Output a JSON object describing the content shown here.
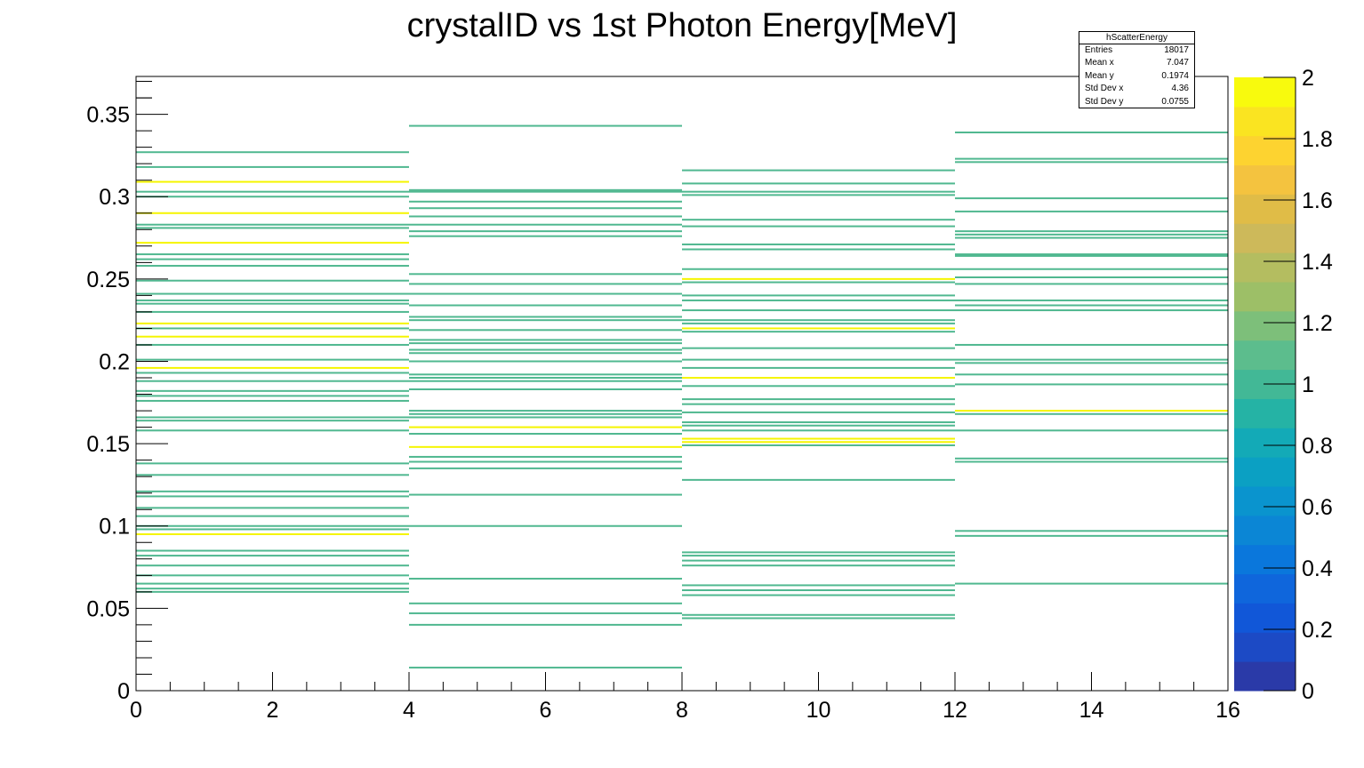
{
  "chart_data": {
    "type": "heatmap",
    "title": "crystalID vs 1st Photon Energy[MeV]",
    "xlabel": "",
    "ylabel": "",
    "xlim": [
      0,
      16
    ],
    "ylim": [
      0,
      0.373
    ],
    "x_ticks": [
      0,
      2,
      4,
      6,
      8,
      10,
      12,
      14,
      16
    ],
    "x_tick_labels": [
      "0",
      "2",
      "4",
      "6",
      "8",
      "10",
      "12",
      "14",
      "16"
    ],
    "y_ticks": [
      0,
      0.05,
      0.1,
      0.15,
      0.2,
      0.25,
      0.3,
      0.35
    ],
    "y_tick_labels": [
      "0",
      "0.05",
      "0.1",
      "0.15",
      "0.2",
      "0.25",
      "0.3",
      "0.35"
    ],
    "colorbar": {
      "min": 0,
      "max": 2,
      "ticks": [
        0,
        0.2,
        0.4,
        0.6,
        0.8,
        1,
        1.2,
        1.4,
        1.6,
        1.8,
        2
      ],
      "tick_labels": [
        "0",
        "0.2",
        "0.4",
        "0.6",
        "0.8",
        "1",
        "1.2",
        "1.4",
        "1.6",
        "1.8",
        "2"
      ],
      "colors": [
        "#2a3aa8",
        "#1c4ac5",
        "#1157d8",
        "#0f66dc",
        "#0a77dc",
        "#0b86d5",
        "#0a94ce",
        "#0ba0c3",
        "#13aab7",
        "#25b3a5",
        "#42b896",
        "#5cbd8d",
        "#7dbf7a",
        "#9dbf67",
        "#b4bd60",
        "#cdb95a",
        "#e0bc47",
        "#f4c33f",
        "#fdd330",
        "#fae421",
        "#f8fa0d"
      ]
    },
    "cell_colors": {
      "1": "#50b890",
      "2": "#f5f500"
    },
    "bins": [
      {
        "x0": 0,
        "x1": 4,
        "cells": [
          [
            0.327,
            1
          ],
          [
            0.318,
            1
          ],
          [
            0.309,
            2
          ],
          [
            0.303,
            1
          ],
          [
            0.3,
            1
          ],
          [
            0.29,
            2
          ],
          [
            0.283,
            1
          ],
          [
            0.281,
            1
          ],
          [
            0.272,
            2
          ],
          [
            0.265,
            1
          ],
          [
            0.262,
            1
          ],
          [
            0.258,
            1
          ],
          [
            0.249,
            1
          ],
          [
            0.241,
            1
          ],
          [
            0.237,
            1
          ],
          [
            0.235,
            1
          ],
          [
            0.23,
            1
          ],
          [
            0.223,
            2
          ],
          [
            0.22,
            1
          ],
          [
            0.215,
            2
          ],
          [
            0.21,
            1
          ],
          [
            0.201,
            1
          ],
          [
            0.196,
            2
          ],
          [
            0.193,
            1
          ],
          [
            0.188,
            1
          ],
          [
            0.182,
            1
          ],
          [
            0.179,
            1
          ],
          [
            0.176,
            1
          ],
          [
            0.166,
            1
          ],
          [
            0.164,
            1
          ],
          [
            0.158,
            1
          ],
          [
            0.138,
            1
          ],
          [
            0.131,
            1
          ],
          [
            0.121,
            1
          ],
          [
            0.118,
            1
          ],
          [
            0.111,
            1
          ],
          [
            0.106,
            1
          ],
          [
            0.1,
            1
          ],
          [
            0.098,
            1
          ],
          [
            0.095,
            2
          ],
          [
            0.085,
            1
          ],
          [
            0.082,
            1
          ],
          [
            0.076,
            1
          ],
          [
            0.07,
            1
          ],
          [
            0.065,
            1
          ],
          [
            0.062,
            1
          ],
          [
            0.06,
            1
          ]
        ]
      },
      {
        "x0": 4,
        "x1": 8,
        "cells": [
          [
            0.343,
            1
          ],
          [
            0.304,
            1
          ],
          [
            0.303,
            1
          ],
          [
            0.297,
            1
          ],
          [
            0.293,
            1
          ],
          [
            0.288,
            1
          ],
          [
            0.283,
            1
          ],
          [
            0.279,
            1
          ],
          [
            0.276,
            1
          ],
          [
            0.253,
            1
          ],
          [
            0.247,
            1
          ],
          [
            0.241,
            1
          ],
          [
            0.234,
            1
          ],
          [
            0.227,
            1
          ],
          [
            0.225,
            1
          ],
          [
            0.219,
            1
          ],
          [
            0.213,
            1
          ],
          [
            0.211,
            1
          ],
          [
            0.207,
            1
          ],
          [
            0.205,
            1
          ],
          [
            0.2,
            1
          ],
          [
            0.192,
            1
          ],
          [
            0.19,
            1
          ],
          [
            0.188,
            1
          ],
          [
            0.183,
            1
          ],
          [
            0.17,
            1
          ],
          [
            0.168,
            1
          ],
          [
            0.166,
            1
          ],
          [
            0.16,
            2
          ],
          [
            0.156,
            1
          ],
          [
            0.148,
            2
          ],
          [
            0.142,
            1
          ],
          [
            0.139,
            1
          ],
          [
            0.135,
            1
          ],
          [
            0.119,
            1
          ],
          [
            0.1,
            1
          ],
          [
            0.068,
            1
          ],
          [
            0.053,
            1
          ],
          [
            0.047,
            1
          ],
          [
            0.04,
            1
          ],
          [
            0.014,
            1
          ]
        ]
      },
      {
        "x0": 8,
        "x1": 12,
        "cells": [
          [
            0.316,
            1
          ],
          [
            0.308,
            1
          ],
          [
            0.303,
            1
          ],
          [
            0.301,
            1
          ],
          [
            0.286,
            1
          ],
          [
            0.282,
            1
          ],
          [
            0.271,
            1
          ],
          [
            0.268,
            1
          ],
          [
            0.256,
            1
          ],
          [
            0.25,
            2
          ],
          [
            0.248,
            1
          ],
          [
            0.24,
            1
          ],
          [
            0.237,
            1
          ],
          [
            0.231,
            1
          ],
          [
            0.225,
            1
          ],
          [
            0.223,
            1
          ],
          [
            0.22,
            2
          ],
          [
            0.218,
            1
          ],
          [
            0.208,
            1
          ],
          [
            0.201,
            1
          ],
          [
            0.196,
            1
          ],
          [
            0.19,
            2
          ],
          [
            0.185,
            1
          ],
          [
            0.177,
            1
          ],
          [
            0.174,
            1
          ],
          [
            0.169,
            1
          ],
          [
            0.163,
            1
          ],
          [
            0.161,
            1
          ],
          [
            0.158,
            1
          ],
          [
            0.153,
            2
          ],
          [
            0.151,
            2
          ],
          [
            0.149,
            1
          ],
          [
            0.128,
            1
          ],
          [
            0.084,
            1
          ],
          [
            0.082,
            1
          ],
          [
            0.079,
            1
          ],
          [
            0.076,
            1
          ],
          [
            0.064,
            1
          ],
          [
            0.061,
            1
          ],
          [
            0.058,
            1
          ],
          [
            0.046,
            1
          ],
          [
            0.044,
            1
          ]
        ]
      },
      {
        "x0": 12,
        "x1": 16,
        "cells": [
          [
            0.339,
            1
          ],
          [
            0.323,
            1
          ],
          [
            0.321,
            1
          ],
          [
            0.299,
            1
          ],
          [
            0.291,
            1
          ],
          [
            0.279,
            1
          ],
          [
            0.277,
            1
          ],
          [
            0.275,
            1
          ],
          [
            0.265,
            1
          ],
          [
            0.264,
            1
          ],
          [
            0.256,
            1
          ],
          [
            0.251,
            1
          ],
          [
            0.247,
            1
          ],
          [
            0.237,
            1
          ],
          [
            0.234,
            1
          ],
          [
            0.231,
            1
          ],
          [
            0.21,
            1
          ],
          [
            0.201,
            1
          ],
          [
            0.199,
            1
          ],
          [
            0.192,
            1
          ],
          [
            0.186,
            1
          ],
          [
            0.17,
            2
          ],
          [
            0.168,
            1
          ],
          [
            0.158,
            1
          ],
          [
            0.141,
            1
          ],
          [
            0.139,
            1
          ],
          [
            0.097,
            1
          ],
          [
            0.094,
            1
          ],
          [
            0.065,
            1
          ]
        ]
      }
    ]
  },
  "statbox": {
    "name": "hScatterEnergy",
    "rows": [
      {
        "label": "Entries",
        "value": "18017"
      },
      {
        "label": "Mean x",
        "value": "7.047"
      },
      {
        "label": "Mean y",
        "value": "0.1974"
      },
      {
        "label": "Std Dev x",
        "value": "4.36"
      },
      {
        "label": "Std Dev y",
        "value": "0.0755"
      }
    ]
  }
}
